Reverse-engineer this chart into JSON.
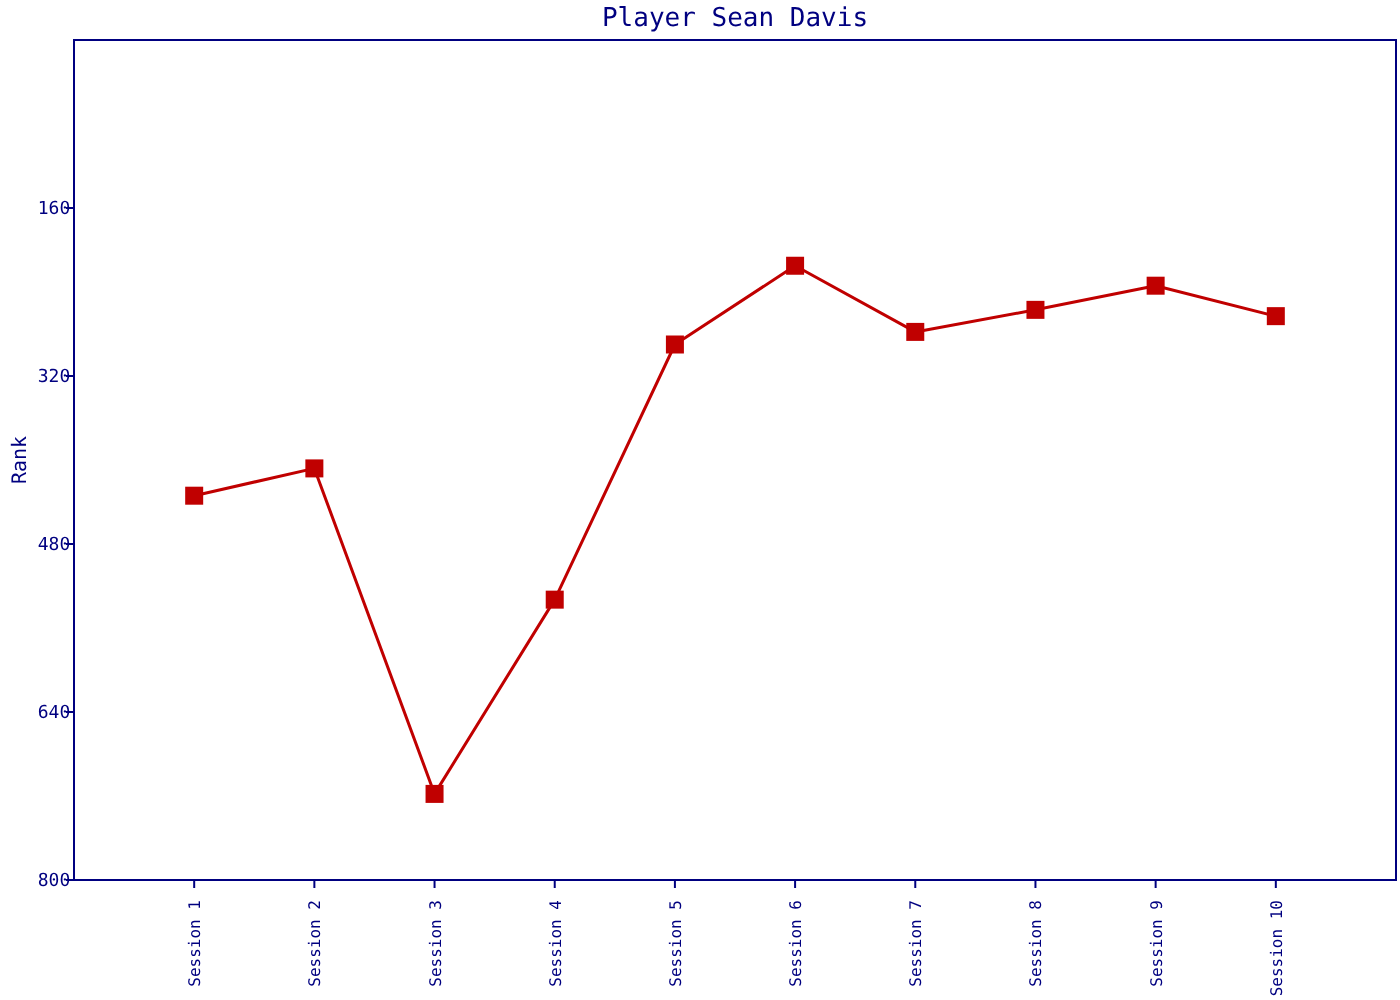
{
  "chart_data": {
    "type": "line",
    "title": "Player Sean Davis",
    "ylabel": "Rank",
    "categories": [
      "Session 1",
      "Session 2",
      "Session 3",
      "Session 4",
      "Session 5",
      "Session 6",
      "Session 7",
      "Session 8",
      "Session 9",
      "Session 10"
    ],
    "series": [
      {
        "color": "#c00000",
        "values": [
          434,
          408,
          718,
          533,
          290,
          215,
          278,
          257,
          234,
          263
        ]
      }
    ],
    "ylim": [
      800,
      0
    ],
    "yticks": [
      160,
      320,
      480,
      640,
      800
    ],
    "grid": false,
    "marker": "square",
    "line_style": "solid"
  }
}
